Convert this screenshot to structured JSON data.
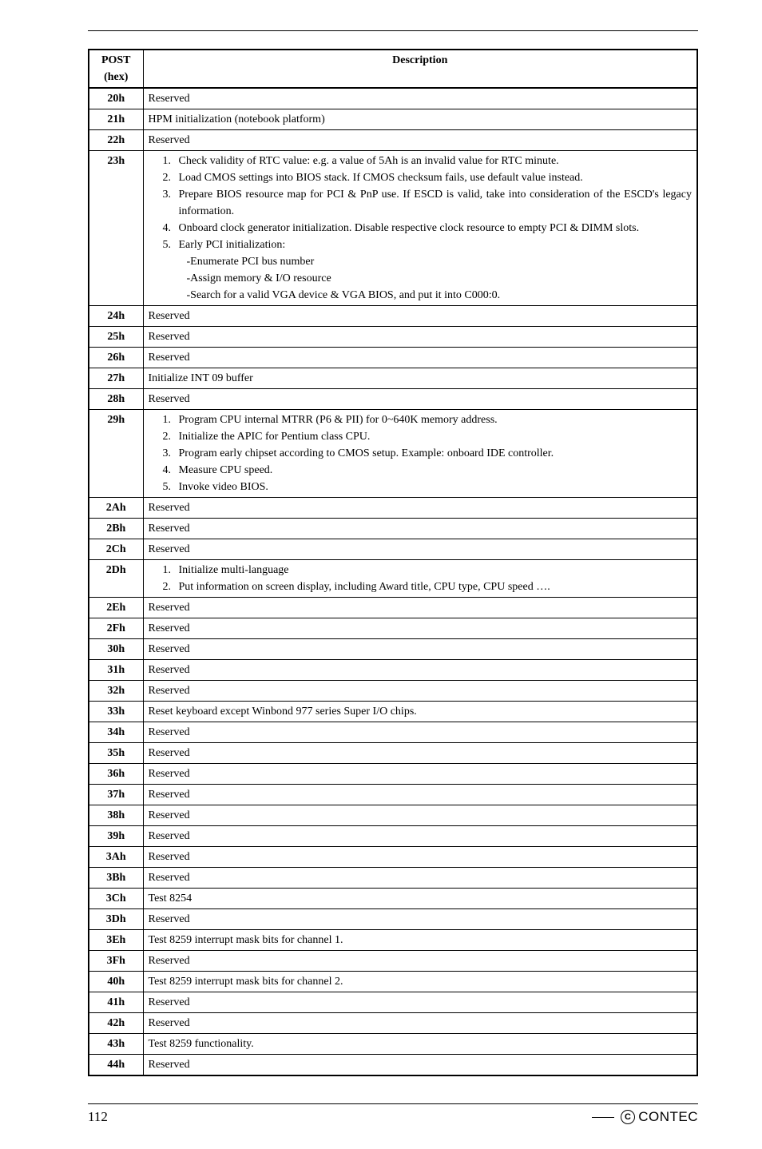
{
  "header": {
    "col_code": "POST",
    "col_code_sub": "(hex)",
    "col_desc": "Description"
  },
  "rows": [
    {
      "code": "20h",
      "desc": "Reserved"
    },
    {
      "code": "21h",
      "desc": "HPM initialization (notebook platform)"
    },
    {
      "code": "22h",
      "desc": "Reserved"
    },
    {
      "code": "23h",
      "steps": [
        "Check validity of RTC value: e.g. a value of 5Ah is an invalid value for RTC minute.",
        "Load CMOS settings into BIOS stack. If CMOS checksum fails, use default value instead.",
        "Prepare BIOS resource map for PCI & PnP use. If ESCD is valid, take into consideration of the ESCD's legacy information.",
        "Onboard clock generator initialization. Disable respective clock resource to empty PCI & DIMM slots.",
        "Early PCI initialization:"
      ],
      "sublines": [
        "-Enumerate PCI bus number",
        "-Assign memory & I/O resource",
        "-Search for a valid VGA device & VGA BIOS, and put it into C000:0."
      ]
    },
    {
      "code": "24h",
      "desc": "Reserved"
    },
    {
      "code": "25h",
      "desc": "Reserved"
    },
    {
      "code": "26h",
      "desc": "Reserved"
    },
    {
      "code": "27h",
      "desc": "Initialize INT 09 buffer"
    },
    {
      "code": "28h",
      "desc": " Reserved"
    },
    {
      "code": "29h",
      "steps": [
        "Program CPU internal MTRR (P6 & PII) for 0~640K memory address.",
        "Initialize the APIC for Pentium class CPU.",
        "Program early chipset according to CMOS setup. Example: onboard IDE controller.",
        "Measure CPU speed.",
        "Invoke video BIOS."
      ]
    },
    {
      "code": "2Ah",
      "desc": "Reserved"
    },
    {
      "code": "2Bh",
      "desc": "Reserved"
    },
    {
      "code": "2Ch",
      "desc": "Reserved"
    },
    {
      "code": "2Dh",
      "steps": [
        "Initialize multi-language",
        "Put information on screen display, including Award title, CPU type, CPU speed …."
      ]
    },
    {
      "code": "2Eh",
      "desc": "Reserved"
    },
    {
      "code": "2Fh",
      "desc": "Reserved"
    },
    {
      "code": "30h",
      "desc": "Reserved"
    },
    {
      "code": "31h",
      "desc": "Reserved"
    },
    {
      "code": "32h",
      "desc": "Reserved"
    },
    {
      "code": "33h",
      "desc": "Reset keyboard except Winbond 977 series Super I/O chips."
    },
    {
      "code": "34h",
      "desc": "Reserved"
    },
    {
      "code": "35h",
      "desc": "Reserved"
    },
    {
      "code": "36h",
      "desc": "Reserved"
    },
    {
      "code": "37h",
      "desc": "Reserved"
    },
    {
      "code": "38h",
      "desc": "Reserved"
    },
    {
      "code": "39h",
      "desc": "Reserved"
    },
    {
      "code": "3Ah",
      "desc": "Reserved"
    },
    {
      "code": "3Bh",
      "desc": "Reserved"
    },
    {
      "code": "3Ch",
      "desc": "Test 8254"
    },
    {
      "code": "3Dh",
      "desc": "Reserved"
    },
    {
      "code": "3Eh",
      "desc": "Test 8259 interrupt mask bits for channel 1."
    },
    {
      "code": "3Fh",
      "desc": "Reserved"
    },
    {
      "code": "40h",
      "desc": "Test 8259 interrupt mask bits for channel 2."
    },
    {
      "code": "41h",
      "desc": "Reserved"
    },
    {
      "code": "42h",
      "desc": "Reserved"
    },
    {
      "code": "43h",
      "desc": "Test 8259 functionality."
    },
    {
      "code": "44h",
      "desc": "Reserved"
    }
  ],
  "footer": {
    "page": "112",
    "brand_glyph": "C",
    "brand_text": "CONTEC"
  }
}
